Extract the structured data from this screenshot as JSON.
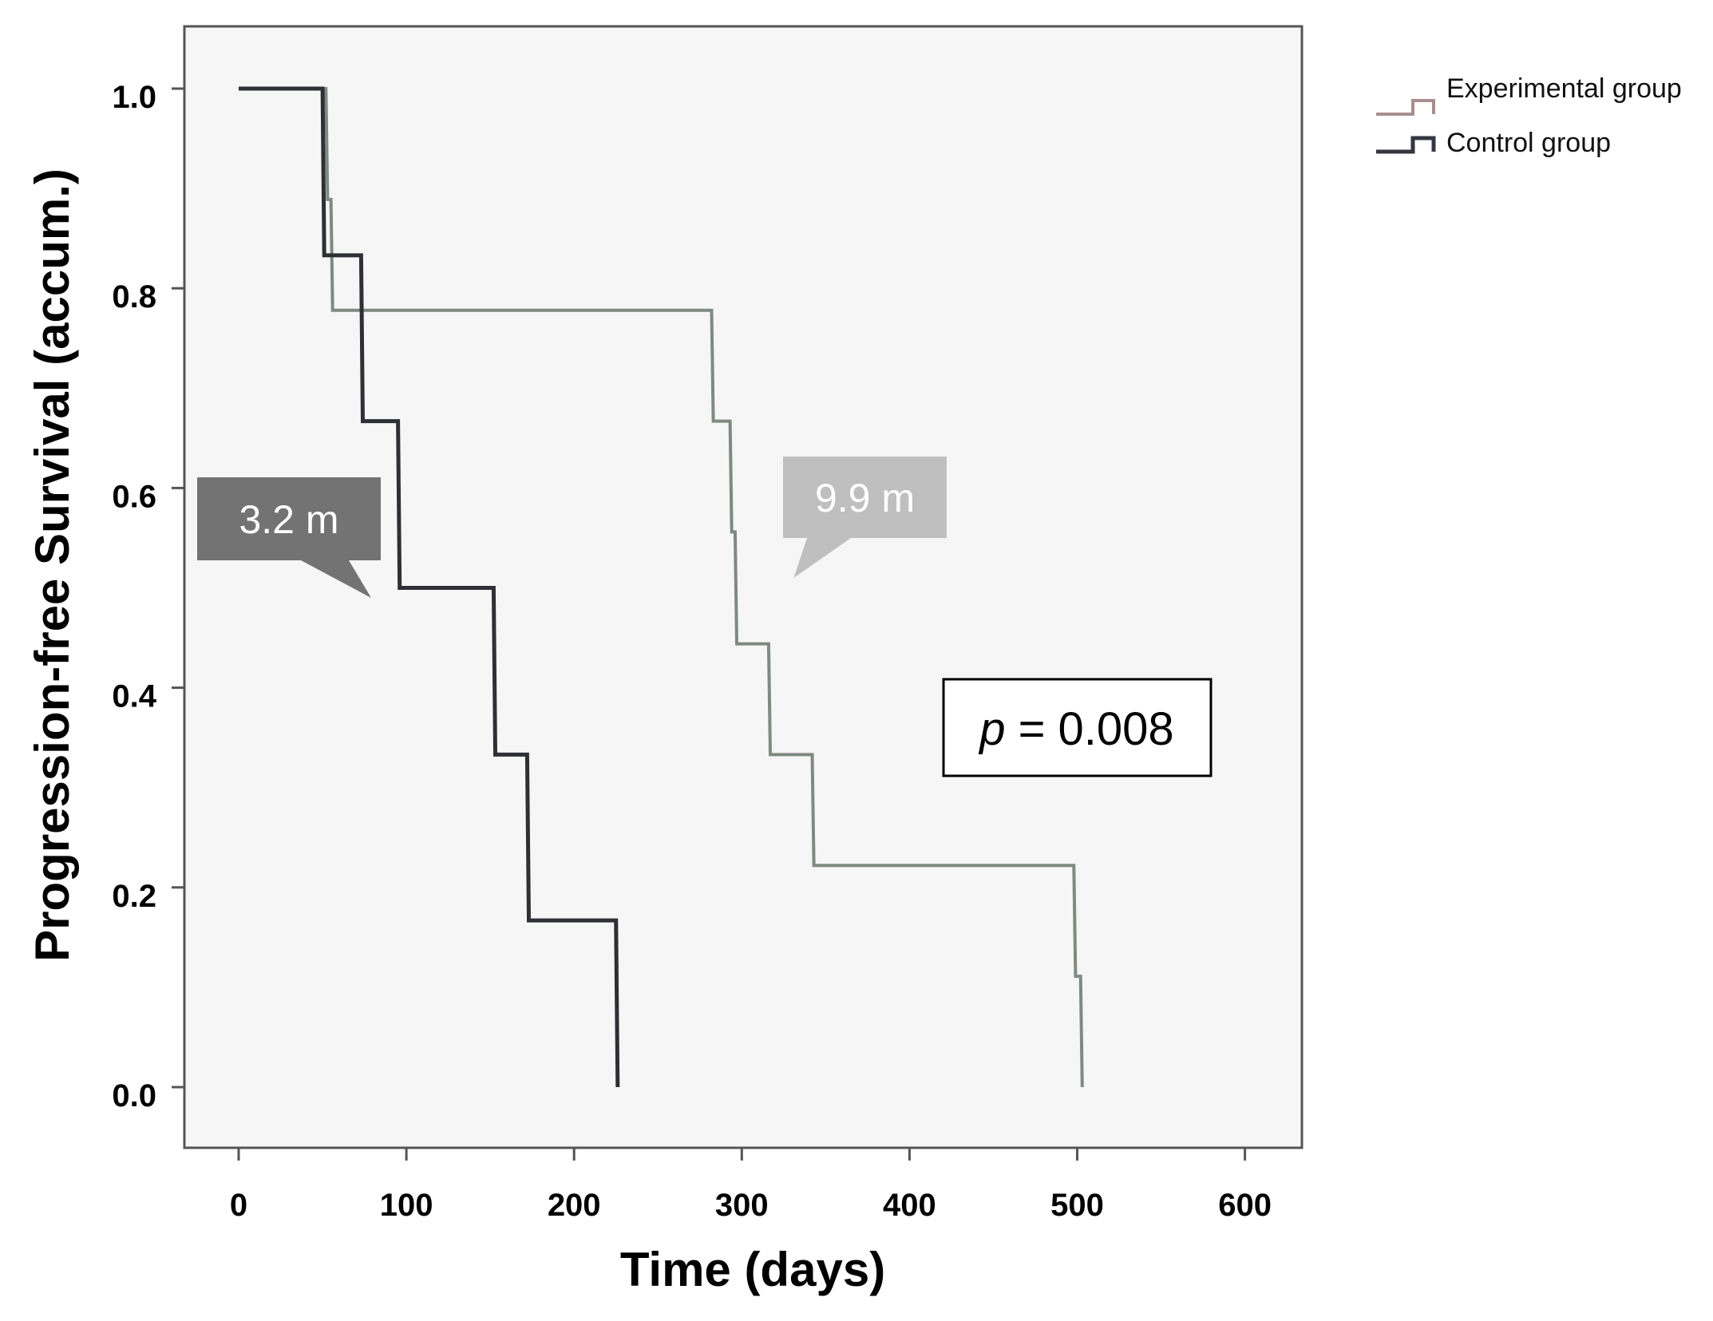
{
  "chart_data": {
    "type": "line",
    "subtype": "kaplan-meier-step",
    "title": "",
    "xlabel": "Time (days)",
    "ylabel": "Progression-free Survival (accum.)",
    "xlim": [
      -33,
      633
    ],
    "ylim": [
      -0.05,
      1.06
    ],
    "x_ticks": [
      0,
      100,
      200,
      300,
      400,
      500,
      600
    ],
    "x_tick_labels": [
      "0",
      "100",
      "200",
      "300",
      "400",
      "500",
      "600"
    ],
    "y_ticks": [
      0.0,
      0.2,
      0.4,
      0.6,
      0.8,
      1.0
    ],
    "y_tick_labels": [
      "0.0",
      "0.2",
      "0.4",
      "0.6",
      "0.8",
      "1.0"
    ],
    "grid": false,
    "legend_position": "outside-top-right",
    "series": [
      {
        "name": "Experimental group",
        "color": "#7f8a80",
        "legend_color": "#a88e8e",
        "x": [
          0,
          52,
          53,
          55,
          56,
          282,
          283,
          293,
          294,
          296,
          297,
          316,
          317,
          342,
          343,
          498,
          499,
          502,
          503
        ],
        "y": [
          1.0,
          1.0,
          0.889,
          0.889,
          0.778,
          0.778,
          0.667,
          0.667,
          0.556,
          0.556,
          0.444,
          0.444,
          0.333,
          0.333,
          0.222,
          0.222,
          0.111,
          0.111,
          0.0
        ]
      },
      {
        "name": "Control group",
        "color": "#2e3036",
        "legend_color": "#333740",
        "x": [
          0,
          50,
          51,
          73,
          74,
          95,
          96,
          152,
          153,
          172,
          173,
          225,
          226
        ],
        "y": [
          1.0,
          1.0,
          0.833,
          0.833,
          0.667,
          0.667,
          0.5,
          0.5,
          0.333,
          0.333,
          0.167,
          0.167,
          0.0
        ]
      }
    ],
    "annotations": [
      {
        "text": "3.2 m",
        "series": "Control group",
        "fill": "#737373",
        "pointer_x": 79,
        "pointer_y": 0.49
      },
      {
        "text": "9.9 m",
        "series": "Experimental group",
        "fill": "#bfbfbf",
        "pointer_x": 331,
        "pointer_y": 0.51
      }
    ],
    "p_value": {
      "label": "p",
      "equals": "= 0.008"
    }
  },
  "colors": {
    "plot_background": "#f6f6f6",
    "frame": "#555555"
  }
}
